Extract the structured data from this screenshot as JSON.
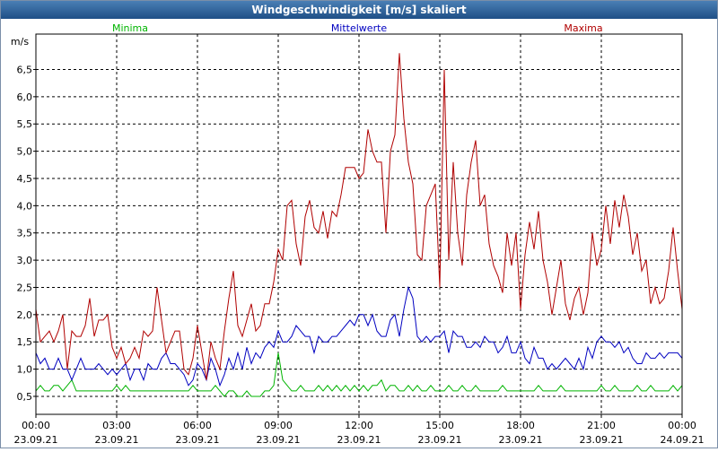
{
  "chart_data": {
    "type": "line",
    "title": "Windgeschwindigkeit [m/s] skaliert",
    "ylabel": "m/s",
    "x": [
      0,
      10,
      20,
      30,
      40,
      50,
      60,
      70,
      80,
      90,
      100,
      110,
      120,
      130,
      140,
      150,
      160,
      170,
      180,
      190,
      200,
      210,
      220,
      230,
      240,
      250,
      260,
      270,
      280,
      290,
      300,
      310,
      320,
      330,
      340,
      350,
      360,
      370,
      380,
      390,
      400,
      410,
      420,
      430,
      440,
      450,
      460,
      470,
      480,
      490,
      500,
      510,
      520,
      530,
      540,
      550,
      560,
      570,
      580,
      590,
      600,
      610,
      620,
      630,
      640,
      650,
      660,
      670,
      680,
      690,
      700,
      710,
      720,
      730,
      740,
      750,
      760,
      770,
      780,
      790,
      800,
      810,
      820,
      830,
      840,
      850,
      860,
      870,
      880,
      890,
      900,
      910,
      920,
      930,
      940,
      950,
      960,
      970,
      980,
      990,
      1000,
      1010,
      1020,
      1030,
      1040,
      1050,
      1060,
      1070,
      1080,
      1090,
      1100,
      1110,
      1120,
      1130,
      1140,
      1150,
      1160,
      1170,
      1180,
      1190,
      1200,
      1210,
      1220,
      1230,
      1240,
      1250,
      1260,
      1270,
      1280,
      1290,
      1300,
      1310,
      1320,
      1330,
      1340,
      1350,
      1360,
      1370,
      1380,
      1390,
      1400,
      1410,
      1420,
      1430,
      1440
    ],
    "xlim": [
      0,
      1440
    ],
    "xticks": [
      {
        "value": 0,
        "label": "00:00 23.09.21"
      },
      {
        "value": 180,
        "label": "03:00 23.09.21"
      },
      {
        "value": 360,
        "label": "06:00 23.09.21"
      },
      {
        "value": 540,
        "label": "09:00 23.09.21"
      },
      {
        "value": 720,
        "label": "12:00 23.09.21"
      },
      {
        "value": 900,
        "label": "15:00 23.09.21"
      },
      {
        "value": 1080,
        "label": "18:00 23.09.21"
      },
      {
        "value": 1260,
        "label": "21:00 23.09.21"
      },
      {
        "value": 1440,
        "label": "00:00 24.09.21"
      }
    ],
    "ylim": [
      0.17,
      7.15
    ],
    "yticks": [
      {
        "value": 0.5,
        "label": "0,5"
      },
      {
        "value": 1.0,
        "label": "1,0"
      },
      {
        "value": 1.5,
        "label": "1,5"
      },
      {
        "value": 2.0,
        "label": "2,0"
      },
      {
        "value": 2.5,
        "label": "2,5"
      },
      {
        "value": 3.0,
        "label": "3,0"
      },
      {
        "value": 3.5,
        "label": "3,5"
      },
      {
        "value": 4.0,
        "label": "4,0"
      },
      {
        "value": 4.5,
        "label": "4,5"
      },
      {
        "value": 5.0,
        "label": "5,0"
      },
      {
        "value": 5.5,
        "label": "5,5"
      },
      {
        "value": 6.0,
        "label": "6,0"
      },
      {
        "value": 6.5,
        "label": "6,5"
      }
    ],
    "grid": true,
    "series": [
      {
        "name": "Minima",
        "color": "#00b400",
        "values": [
          0.6,
          0.7,
          0.6,
          0.6,
          0.7,
          0.7,
          0.6,
          0.7,
          0.8,
          0.6,
          0.6,
          0.6,
          0.6,
          0.6,
          0.6,
          0.6,
          0.6,
          0.6,
          0.7,
          0.6,
          0.7,
          0.6,
          0.6,
          0.6,
          0.6,
          0.6,
          0.6,
          0.6,
          0.6,
          0.6,
          0.6,
          0.6,
          0.6,
          0.6,
          0.6,
          0.7,
          0.6,
          0.6,
          0.6,
          0.6,
          0.7,
          0.6,
          0.5,
          0.6,
          0.6,
          0.5,
          0.5,
          0.6,
          0.5,
          0.5,
          0.5,
          0.6,
          0.6,
          0.7,
          1.3,
          0.8,
          0.7,
          0.6,
          0.6,
          0.7,
          0.6,
          0.6,
          0.6,
          0.7,
          0.6,
          0.7,
          0.6,
          0.7,
          0.6,
          0.7,
          0.6,
          0.7,
          0.6,
          0.7,
          0.6,
          0.7,
          0.7,
          0.8,
          0.6,
          0.7,
          0.7,
          0.6,
          0.6,
          0.7,
          0.6,
          0.7,
          0.6,
          0.6,
          0.7,
          0.6,
          0.6,
          0.6,
          0.7,
          0.6,
          0.6,
          0.7,
          0.6,
          0.6,
          0.7,
          0.6,
          0.6,
          0.6,
          0.6,
          0.6,
          0.7,
          0.6,
          0.6,
          0.6,
          0.6,
          0.6,
          0.6,
          0.6,
          0.7,
          0.6,
          0.6,
          0.6,
          0.6,
          0.7,
          0.6,
          0.6,
          0.6,
          0.6,
          0.6,
          0.6,
          0.6,
          0.6,
          0.7,
          0.6,
          0.6,
          0.7,
          0.6,
          0.6,
          0.6,
          0.6,
          0.7,
          0.6,
          0.6,
          0.7,
          0.6,
          0.6,
          0.6,
          0.6,
          0.7,
          0.6,
          0.7
        ]
      },
      {
        "name": "Mittelwerte",
        "color": "#0000c0",
        "values": [
          1.3,
          1.1,
          1.2,
          1.0,
          1.0,
          1.2,
          1.0,
          1.0,
          0.8,
          1.0,
          1.2,
          1.0,
          1.0,
          1.0,
          1.1,
          1.0,
          0.9,
          1.0,
          0.9,
          1.0,
          1.1,
          0.8,
          1.0,
          1.0,
          0.8,
          1.1,
          1.0,
          1.0,
          1.2,
          1.3,
          1.1,
          1.1,
          1.0,
          0.9,
          0.7,
          0.8,
          1.1,
          1.0,
          0.8,
          1.2,
          1.0,
          0.7,
          0.9,
          1.2,
          1.0,
          1.3,
          1.0,
          1.4,
          1.1,
          1.3,
          1.2,
          1.4,
          1.5,
          1.4,
          1.7,
          1.5,
          1.5,
          1.6,
          1.8,
          1.7,
          1.6,
          1.6,
          1.3,
          1.6,
          1.5,
          1.5,
          1.6,
          1.6,
          1.7,
          1.8,
          1.9,
          1.8,
          2.0,
          2.0,
          1.8,
          2.0,
          1.7,
          1.6,
          1.6,
          1.9,
          2.0,
          1.6,
          2.1,
          2.5,
          2.3,
          1.6,
          1.5,
          1.6,
          1.5,
          1.6,
          1.6,
          1.7,
          1.3,
          1.7,
          1.6,
          1.6,
          1.4,
          1.4,
          1.5,
          1.4,
          1.6,
          1.5,
          1.5,
          1.3,
          1.4,
          1.6,
          1.3,
          1.3,
          1.5,
          1.2,
          1.1,
          1.4,
          1.2,
          1.2,
          1.0,
          1.1,
          1.0,
          1.1,
          1.2,
          1.1,
          1.0,
          1.2,
          1.0,
          1.4,
          1.2,
          1.5,
          1.6,
          1.5,
          1.5,
          1.4,
          1.5,
          1.3,
          1.4,
          1.2,
          1.1,
          1.1,
          1.3,
          1.2,
          1.2,
          1.3,
          1.2,
          1.3,
          1.3,
          1.3,
          1.2
        ]
      },
      {
        "name": "Maxima",
        "color": "#b00000",
        "values": [
          2.1,
          1.5,
          1.6,
          1.7,
          1.5,
          1.7,
          2.0,
          1.0,
          1.7,
          1.6,
          1.6,
          1.8,
          2.3,
          1.6,
          1.9,
          1.9,
          2.0,
          1.4,
          1.2,
          1.4,
          1.1,
          1.2,
          1.4,
          1.2,
          1.7,
          1.6,
          1.7,
          2.5,
          1.9,
          1.3,
          1.5,
          1.7,
          1.7,
          1.0,
          0.9,
          1.2,
          1.8,
          1.3,
          0.8,
          1.5,
          1.2,
          1.0,
          1.7,
          2.3,
          2.8,
          1.8,
          1.6,
          1.9,
          2.2,
          1.7,
          1.8,
          2.2,
          2.2,
          2.6,
          3.2,
          3.0,
          4.0,
          4.1,
          3.3,
          2.9,
          3.8,
          4.1,
          3.6,
          3.5,
          3.9,
          3.4,
          3.9,
          3.8,
          4.2,
          4.7,
          4.7,
          4.7,
          4.5,
          4.6,
          5.4,
          5.0,
          4.8,
          4.8,
          3.5,
          5.0,
          5.3,
          6.8,
          5.6,
          4.8,
          4.4,
          3.1,
          3.0,
          4.0,
          4.2,
          4.4,
          2.5,
          6.5,
          3.0,
          4.8,
          3.5,
          2.9,
          4.2,
          4.8,
          5.2,
          4.0,
          4.2,
          3.3,
          2.9,
          2.7,
          2.4,
          3.5,
          2.9,
          3.5,
          2.1,
          3.1,
          3.7,
          3.2,
          3.9,
          3.0,
          2.6,
          2.0,
          2.5,
          3.0,
          2.2,
          1.9,
          2.3,
          2.5,
          2.0,
          2.4,
          3.5,
          2.9,
          3.2,
          4.0,
          3.3,
          4.1,
          3.6,
          4.2,
          3.8,
          3.1,
          3.5,
          2.8,
          3.0,
          2.2,
          2.5,
          2.2,
          2.3,
          2.8,
          3.6,
          2.8,
          2.1
        ]
      }
    ]
  }
}
